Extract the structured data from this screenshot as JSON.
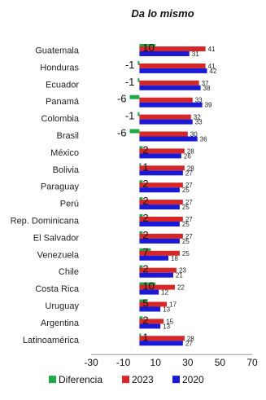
{
  "chart_data": {
    "type": "bar",
    "orientation": "horizontal",
    "title": "Da lo mismo",
    "categories": [
      "Guatemala",
      "Honduras",
      "Ecuador",
      "Panamá",
      "Colombia",
      "Brasil",
      "México",
      "Bolivia",
      "Paraguay",
      "Perú",
      "Rep. Dominicana",
      "El Salvador",
      "Venezuela",
      "Chile",
      "Costa Rica",
      "Uruguay",
      "Argentina",
      "Latinoamérica"
    ],
    "series": [
      {
        "name": "Diferencia",
        "color": "#1faa4a",
        "values": [
          10,
          -1,
          -1,
          -6,
          -1,
          -6,
          2,
          1,
          2,
          2,
          2,
          2,
          7,
          2,
          10,
          5,
          2,
          1
        ]
      },
      {
        "name": "2023",
        "color": "#d62728",
        "values": [
          41,
          41,
          37,
          33,
          32,
          30,
          28,
          28,
          27,
          27,
          27,
          27,
          25,
          23,
          22,
          17,
          15,
          28
        ]
      },
      {
        "name": "2020",
        "color": "#1a1ad6",
        "values": [
          31,
          42,
          38,
          39,
          33,
          36,
          26,
          27,
          25,
          25,
          25,
          25,
          18,
          21,
          12,
          13,
          13,
          27
        ]
      }
    ],
    "xlim": [
      -30,
      70
    ],
    "xticks": [
      "-30",
      "-10",
      "10",
      "30",
      "50",
      "70"
    ],
    "legend_position": "bottom",
    "grid": false
  }
}
